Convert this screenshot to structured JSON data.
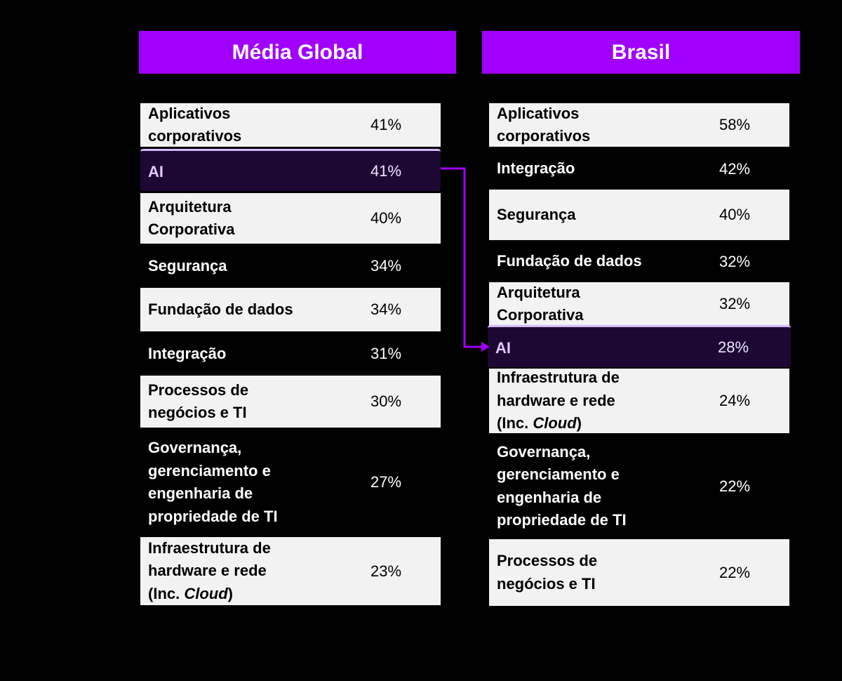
{
  "chart_data": {
    "type": "table",
    "tables": [
      {
        "title": "Média Global",
        "rows": [
          {
            "label": "Aplicativos corporativos",
            "value": "41%"
          },
          {
            "label": "AI",
            "value": "41%",
            "highlight": true
          },
          {
            "label": "Arquitetura Corporativa",
            "value": "40%"
          },
          {
            "label": "Segurança",
            "value": "34%"
          },
          {
            "label": "Fundação de dados",
            "value": "34%"
          },
          {
            "label": "Integração",
            "value": "31%"
          },
          {
            "label": "Processos de negócios e TI",
            "value": "30%"
          },
          {
            "label": "Governança, gerenciamento e engenharia de propriedade de TI",
            "value": "27%"
          },
          {
            "label": "Infraestrutura de hardware e rede (Inc. Cloud)",
            "value": "23%"
          }
        ]
      },
      {
        "title": "Brasil",
        "rows": [
          {
            "label": "Aplicativos corporativos",
            "value": "58%"
          },
          {
            "label": "Integração",
            "value": "42%"
          },
          {
            "label": "Segurança",
            "value": "40%"
          },
          {
            "label": "Fundação de dados",
            "value": "32%"
          },
          {
            "label": "Arquitetura Corporativa",
            "value": "32%"
          },
          {
            "label": "AI",
            "value": "28%",
            "highlight": true
          },
          {
            "label": "Infraestrutura de hardware e rede (Inc. Cloud)",
            "value": "24%"
          },
          {
            "label": "Governança, gerenciamento e engenharia de propriedade de TI",
            "value": "22%"
          },
          {
            "label": "Processos de negócios e TI",
            "value": "22%"
          }
        ]
      }
    ]
  },
  "colors": {
    "header": "#a100ff",
    "light_row": "#f2f2f2",
    "highlight_row": "#1c0833",
    "arrow": "#a100ff"
  }
}
